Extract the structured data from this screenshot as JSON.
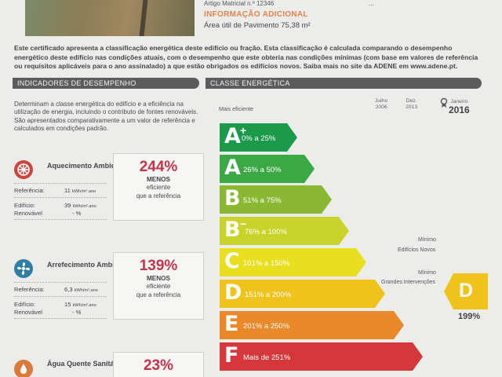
{
  "header": {
    "artigo_cut": "Artigo Matricial n.º 12346",
    "right_cut": "...",
    "info_title": "INFORMAÇÃO ADICIONAL",
    "area": "Área útil de Pavimento 75,38 m²"
  },
  "intro": "Este certificado apresenta a classificação energética deste edifício ou fração. Esta classificação é calculada comparando o desempenho energético deste edifício nas condições atuais, com o desempenho que este obteria nas condições mínimas (com base em valores de referência ou requisitos aplicáveis para o ano assinalado) a que estão obrigados os edifícios novos. Saiba mais no site da ADENE em www.adene.pt.",
  "indicadores": {
    "title": "INDICADORES DE DESEMPENHO",
    "intro": "Determinam a classe energética do edifício e a eficiência na utilização de energia, incluindo o contributo de fontes renováveis. São apresentados comparativamente a um valor de referência e calculados em condições padrão.",
    "items": [
      {
        "name": "Aquecimento Ambiente",
        "ref_label": "Referência:",
        "ref_value": "11",
        "ref_unit": "kWh/m².ano",
        "edif_label": "Edifício:",
        "edif_value": "39",
        "edif_unit": "kWh/m².ano",
        "renov_label": "Renovável",
        "renov_value": "- %",
        "pct": "244%",
        "menos": "MENOS",
        "efi": "eficiente",
        "ref": "que a referência",
        "color": "#c9473f"
      },
      {
        "name": "Arrefecimento Ambiente",
        "ref_label": "Referência:",
        "ref_value": "6,3",
        "ref_unit": "kWh/m².ano",
        "edif_label": "Edifício:",
        "edif_value": "15",
        "edif_unit": "kWh/m².ano",
        "renov_label": "Renovável",
        "renov_value": "- %",
        "pct": "139%",
        "menos": "MENOS",
        "efi": "eficiente",
        "ref": "que a referência",
        "color": "#2f7fa3"
      },
      {
        "name": "Água Quente Sanitária",
        "pct": "23%",
        "color": "#d97a3b"
      }
    ]
  },
  "classe": {
    "title": "CLASSE ENERGÉTICA",
    "mais_eficiente": "Mais eficiente",
    "dates": [
      {
        "month": "Julho",
        "year": "2006"
      },
      {
        "month": "Dez.",
        "year": "2013"
      },
      {
        "month": "Janeiro",
        "year": "2016"
      }
    ],
    "bars": [
      {
        "letter": "A",
        "sup": "+",
        "range": "0% a 25%",
        "color": "#1a9a4a"
      },
      {
        "letter": "A",
        "sup": "",
        "range": "26% a 50%",
        "color": "#3aa845"
      },
      {
        "letter": "B",
        "sup": "",
        "range": "51% a 75%",
        "color": "#8ab833"
      },
      {
        "letter": "B",
        "sup": "−",
        "range": "76% a 100%",
        "color": "#c8d42a"
      },
      {
        "letter": "C",
        "sup": "",
        "range": "101% a 150%",
        "color": "#e8df1e"
      },
      {
        "letter": "D",
        "sup": "",
        "range": "151% a 200%",
        "color": "#f0c31c"
      },
      {
        "letter": "E",
        "sup": "",
        "range": "201% a 250%",
        "color": "#e9892a"
      },
      {
        "letter": "F",
        "sup": "",
        "range": "Mais de 251%",
        "color": "#d6373a"
      }
    ],
    "minimo1": "Mínimo",
    "novos": "Edifícios Novos",
    "minimo2": "Mínimo",
    "grandes": "Grandes Intervenções",
    "current_letter": "D",
    "current_pct": "199%",
    "current_color": "#f0c31c"
  }
}
